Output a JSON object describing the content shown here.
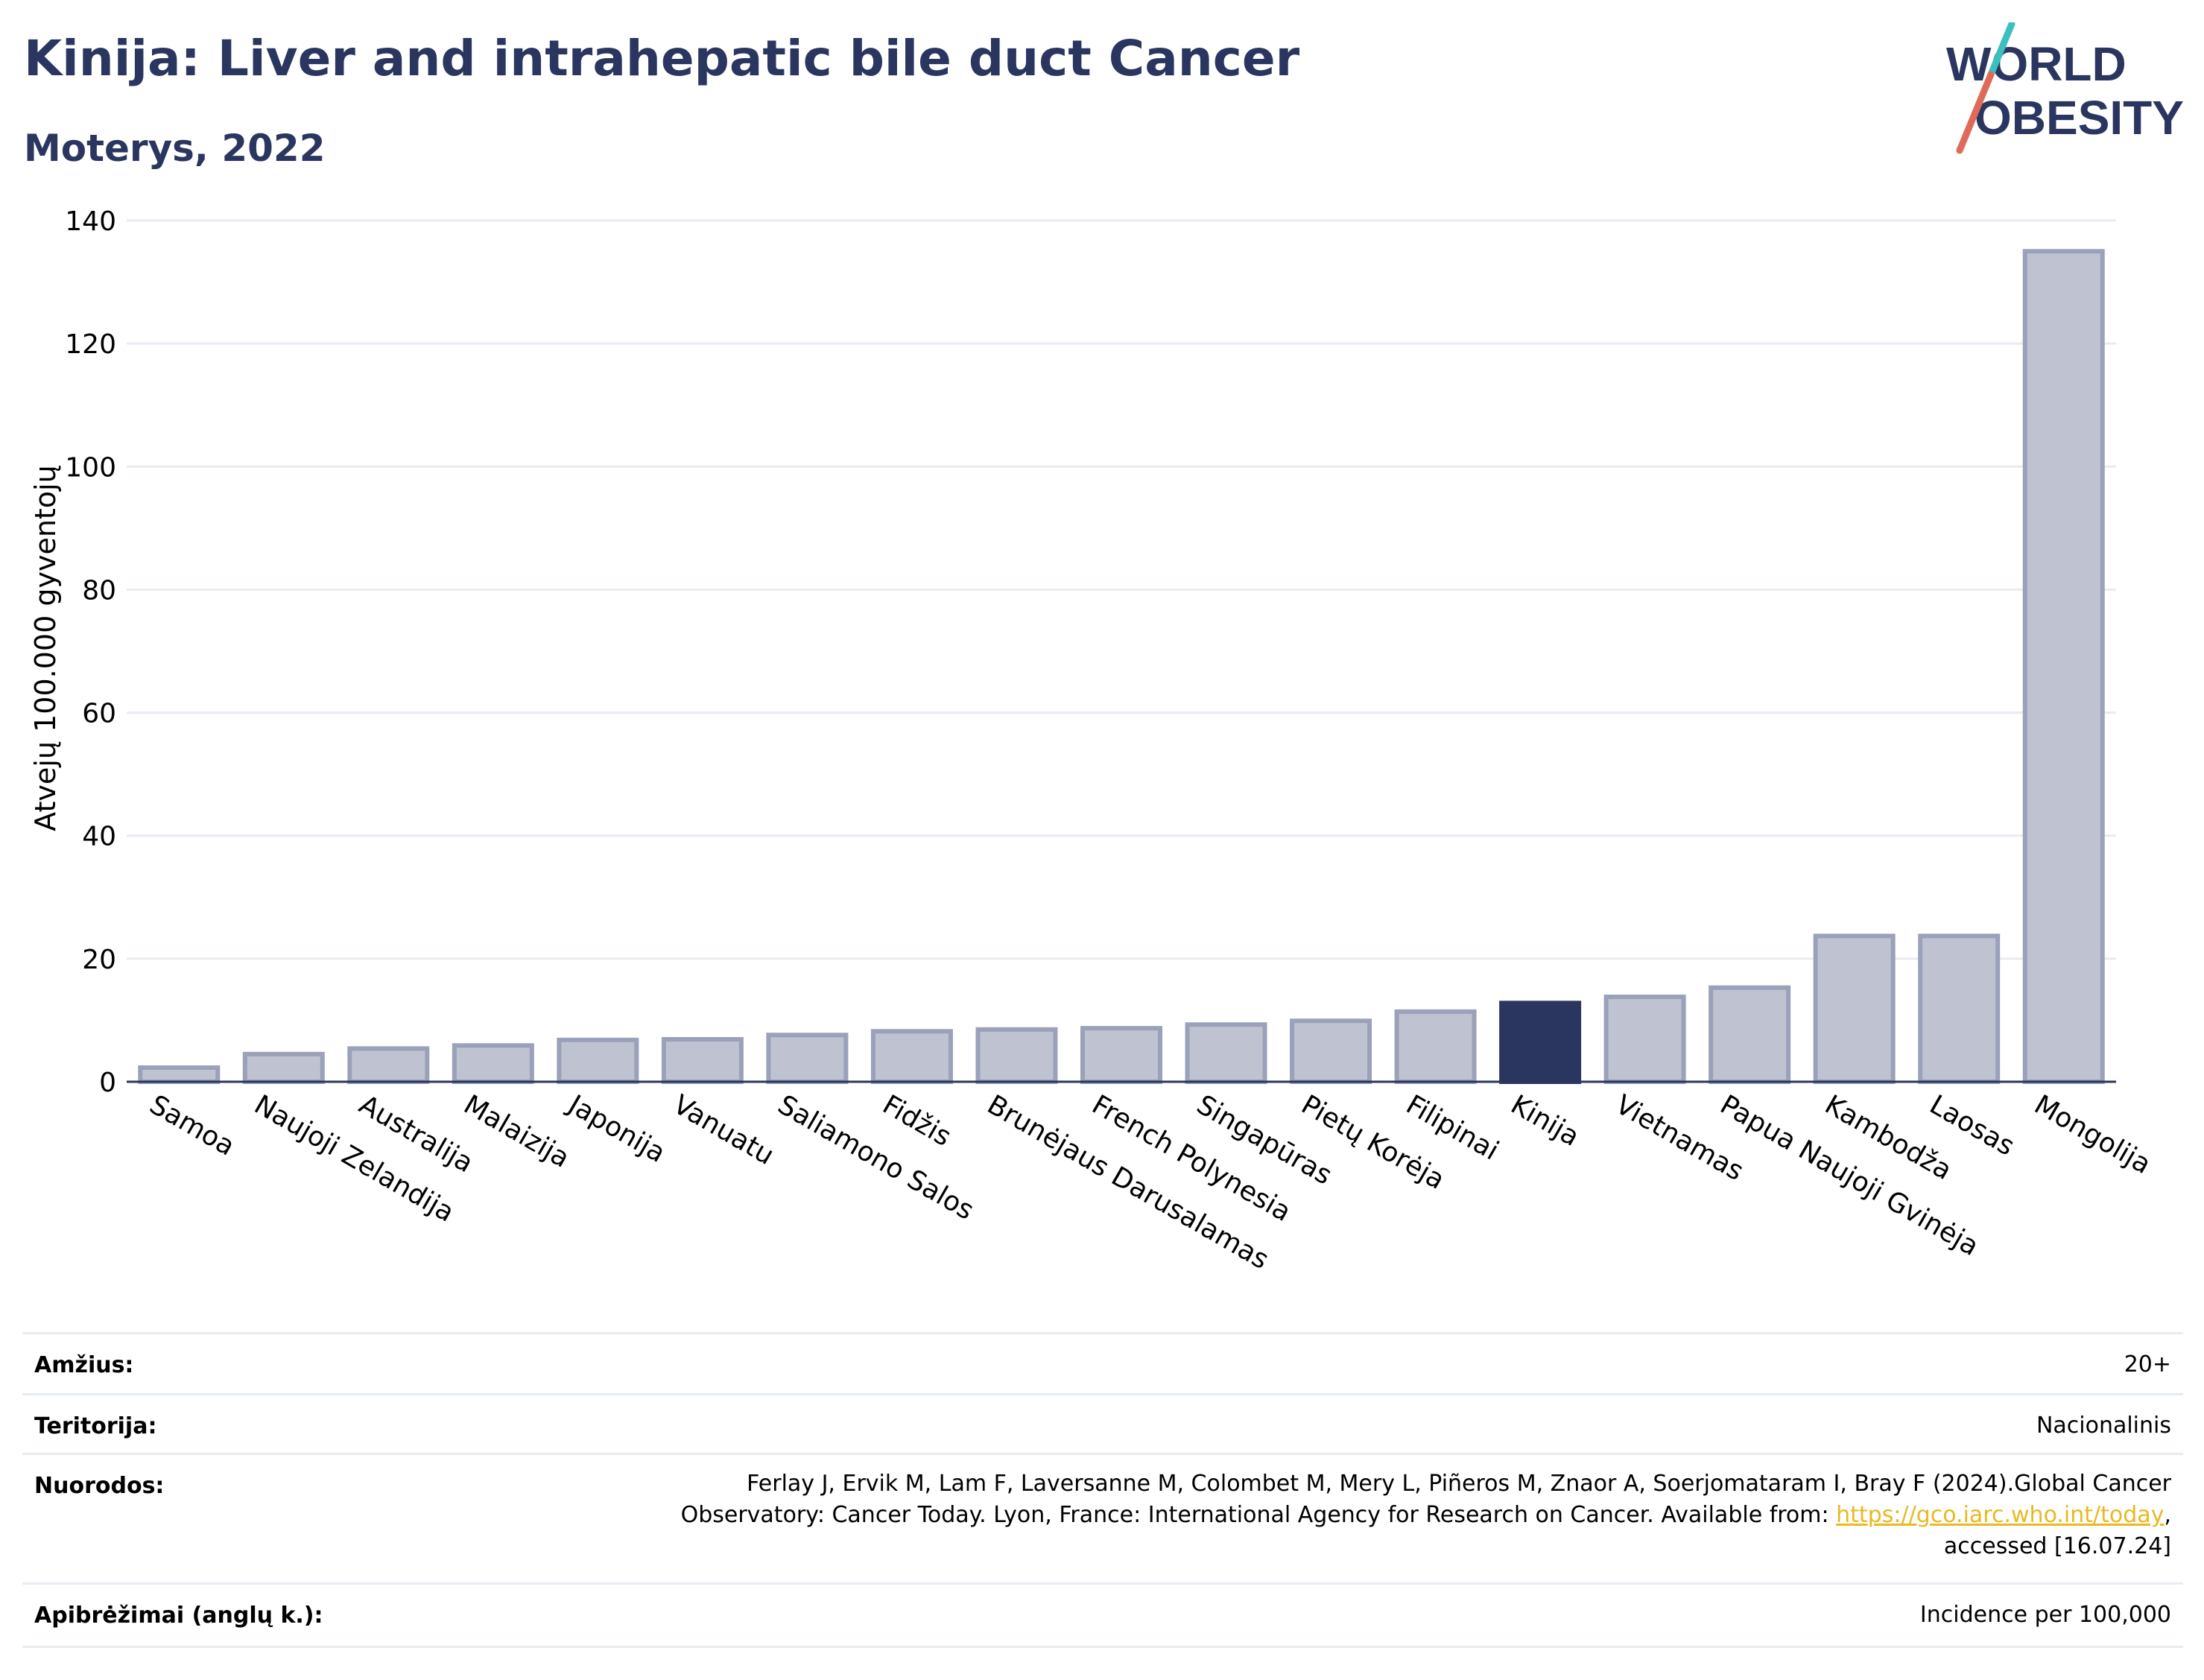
{
  "header": {
    "title": "Kinija: Liver and intrahepatic bile duct Cancer",
    "subtitle": "Moterys, 2022"
  },
  "logo": {
    "line1": "WORLD",
    "line2": "OBESITY",
    "colors": {
      "text": "#2b3660",
      "slash_teal": "#3bbfbf",
      "slash_red": "#e06a5a"
    }
  },
  "chart_data": {
    "type": "bar",
    "ylabel": "Atvejų 100.000 gyventojų",
    "xlabel": "",
    "ylim": [
      0,
      140
    ],
    "yticks": [
      0,
      20,
      40,
      60,
      80,
      100,
      120,
      140
    ],
    "grid": true,
    "categories": [
      "Samoa",
      "Naujoji Zelandija",
      "Australija",
      "Malaizija",
      "Japonija",
      "Vanuatu",
      "Saliamono Salos",
      "Fidžis",
      "Brunėjaus Darusalamas",
      "French Polynesia",
      "Singapūras",
      "Pietų Korėja",
      "Filipinai",
      "Kinija",
      "Vietnamas",
      "Papua Naujoji Gvinėja",
      "Kambodža",
      "Laosas",
      "Mongolija"
    ],
    "values": [
      2.3,
      4.5,
      5.4,
      5.9,
      6.8,
      6.9,
      7.6,
      8.2,
      8.5,
      8.7,
      9.3,
      9.9,
      11.4,
      12.8,
      13.8,
      15.3,
      23.7,
      23.7,
      135.0
    ],
    "highlight": "Kinija",
    "colors": {
      "bar": "#bfc3d1",
      "bar_edge": "#9aa1b8",
      "highlight": "#2b3660",
      "grid": "#e6ecf2"
    }
  },
  "meta": {
    "age_label": "Amžius:",
    "age_value": "20+",
    "territory_label": "Teritorija:",
    "territory_value": "Nacionalinis",
    "refs_label": "Nuorodos:",
    "refs_line1": "Ferlay J, Ervik M, Lam F, Laversanne M, Colombet M, Mery L, Piñeros M, Znaor A, Soerjomataram I, Bray F (2024).Global Cancer",
    "refs_line2_pre": "Observatory: Cancer Today. Lyon, France: International Agency for Research on Cancer. Available from: ",
    "refs_link": "https://gco.iarc.who.int/today",
    "refs_line2_post": ",",
    "refs_line3": "accessed [16.07.24]",
    "definitions_label": "Apibrėžimai (anglų k.):",
    "definitions_value": "Incidence per 100,000"
  }
}
